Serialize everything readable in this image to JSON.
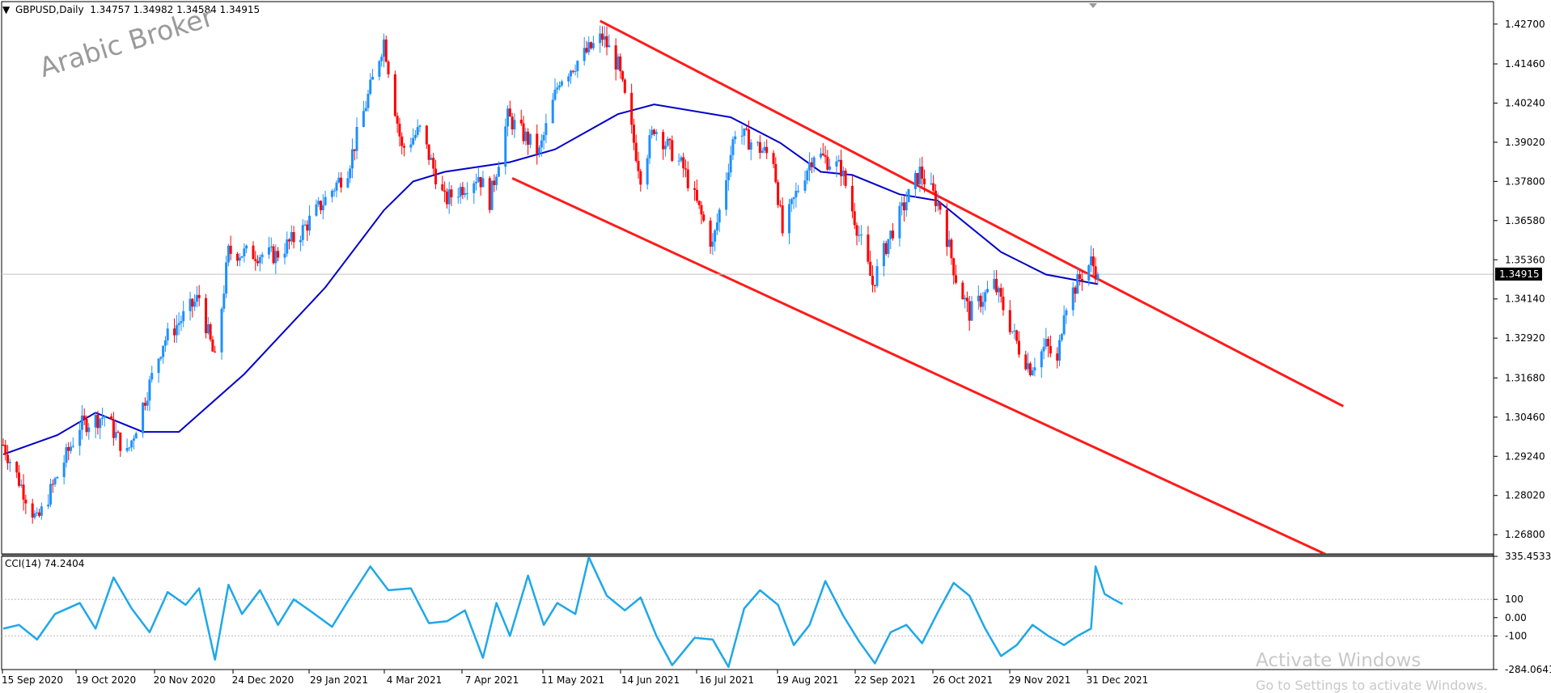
{
  "header": {
    "symbol": "GBPUSD,Daily",
    "ohlc": "1.34757 1.34982 1.34584 1.34915",
    "cci_label": "CCI(14) 74.2404"
  },
  "watermark": "Arabic Broker",
  "activation": {
    "title": "Activate Windows",
    "subtitle": "Go to Settings to activate Windows."
  },
  "colors": {
    "up_candle": "#1e90ff",
    "down_candle": "#ff0000",
    "moving_average": "#0000cc",
    "channel": "#ff1a1a",
    "cci_line": "#1ea8e8",
    "price_label_bg": "#000000"
  },
  "chart_data": [
    {
      "type": "candlestick",
      "symbol": "GBPUSD",
      "timeframe": "Daily",
      "last": {
        "open": 1.34757,
        "high": 1.34982,
        "low": 1.34584,
        "close": 1.34915
      },
      "current_price_label": "1.34915",
      "ylim": [
        1.262,
        1.434
      ],
      "y_ticks": [
        "1.42700",
        "1.41460",
        "1.40240",
        "1.39020",
        "1.37800",
        "1.36580",
        "1.35360",
        "1.34140",
        "1.32920",
        "1.31680",
        "1.30460",
        "1.29240",
        "1.28020",
        "1.26800"
      ],
      "x_ticks": [
        "15 Sep 2020",
        "19 Oct 2020",
        "20 Nov 2020",
        "24 Dec 2020",
        "29 Jan 2021",
        "4 Mar 2021",
        "7 Apr 2021",
        "11 May 2021",
        "14 Jun 2021",
        "16 Jul 2021",
        "19 Aug 2021",
        "22 Sep 2021",
        "26 Oct 2021",
        "29 Nov 2021",
        "31 Dec 2021"
      ],
      "close_path": [
        {
          "date": "2020-09-08",
          "close": 1.296
        },
        {
          "date": "2020-09-23",
          "close": 1.272
        },
        {
          "date": "2020-10-12",
          "close": 1.302
        },
        {
          "date": "2020-10-23",
          "close": 1.305
        },
        {
          "date": "2020-11-02",
          "close": 1.293
        },
        {
          "date": "2020-11-18",
          "close": 1.328
        },
        {
          "date": "2020-12-04",
          "close": 1.342
        },
        {
          "date": "2020-12-11",
          "close": 1.322
        },
        {
          "date": "2020-12-17",
          "close": 1.356
        },
        {
          "date": "2021-01-07",
          "close": 1.355
        },
        {
          "date": "2021-01-18",
          "close": 1.362
        },
        {
          "date": "2021-02-08",
          "close": 1.382
        },
        {
          "date": "2021-02-24",
          "close": 1.422
        },
        {
          "date": "2021-03-04",
          "close": 1.388
        },
        {
          "date": "2021-03-12",
          "close": 1.394
        },
        {
          "date": "2021-03-23",
          "close": 1.372
        },
        {
          "date": "2021-04-07",
          "close": 1.38
        },
        {
          "date": "2021-04-12",
          "close": 1.372
        },
        {
          "date": "2021-04-20",
          "close": 1.398
        },
        {
          "date": "2021-05-04",
          "close": 1.387
        },
        {
          "date": "2021-05-13",
          "close": 1.41
        },
        {
          "date": "2021-06-01",
          "close": 1.423
        },
        {
          "date": "2021-06-08",
          "close": 1.414
        },
        {
          "date": "2021-06-18",
          "close": 1.38
        },
        {
          "date": "2021-06-24",
          "close": 1.395
        },
        {
          "date": "2021-07-07",
          "close": 1.382
        },
        {
          "date": "2021-07-20",
          "close": 1.358
        },
        {
          "date": "2021-07-30",
          "close": 1.394
        },
        {
          "date": "2021-08-16",
          "close": 1.385
        },
        {
          "date": "2021-08-20",
          "close": 1.362
        },
        {
          "date": "2021-08-27",
          "close": 1.376
        },
        {
          "date": "2021-09-03",
          "close": 1.387
        },
        {
          "date": "2021-09-15",
          "close": 1.382
        },
        {
          "date": "2021-09-29",
          "close": 1.346
        },
        {
          "date": "2021-10-06",
          "close": 1.36
        },
        {
          "date": "2021-10-20",
          "close": 1.381
        },
        {
          "date": "2021-10-29",
          "close": 1.37
        },
        {
          "date": "2021-11-05",
          "close": 1.348
        },
        {
          "date": "2021-11-11",
          "close": 1.337
        },
        {
          "date": "2021-11-22",
          "close": 1.346
        },
        {
          "date": "2021-12-03",
          "close": 1.326
        },
        {
          "date": "2021-12-08",
          "close": 1.32
        },
        {
          "date": "2021-12-15",
          "close": 1.327
        },
        {
          "date": "2021-12-20",
          "close": 1.321
        },
        {
          "date": "2021-12-23",
          "close": 1.339
        },
        {
          "date": "2021-12-31",
          "close": 1.349
        },
        {
          "date": "2022-01-04",
          "close": 1.353
        },
        {
          "date": "2022-01-07",
          "close": 1.3491
        }
      ],
      "moving_average": [
        {
          "date": "2020-09-08",
          "value": 1.293
        },
        {
          "date": "2020-10-02",
          "value": 1.299
        },
        {
          "date": "2020-10-19",
          "value": 1.306
        },
        {
          "date": "2020-11-09",
          "value": 1.3
        },
        {
          "date": "2020-11-25",
          "value": 1.3
        },
        {
          "date": "2020-12-24",
          "value": 1.318
        },
        {
          "date": "2021-01-29",
          "value": 1.345
        },
        {
          "date": "2021-02-24",
          "value": 1.369
        },
        {
          "date": "2021-03-09",
          "value": 1.378
        },
        {
          "date": "2021-03-23",
          "value": 1.381
        },
        {
          "date": "2021-04-21",
          "value": 1.384
        },
        {
          "date": "2021-05-11",
          "value": 1.388
        },
        {
          "date": "2021-06-08",
          "value": 1.399
        },
        {
          "date": "2021-06-24",
          "value": 1.402
        },
        {
          "date": "2021-07-28",
          "value": 1.398
        },
        {
          "date": "2021-08-19",
          "value": 1.39
        },
        {
          "date": "2021-09-06",
          "value": 1.381
        },
        {
          "date": "2021-09-20",
          "value": 1.38
        },
        {
          "date": "2021-10-11",
          "value": 1.374
        },
        {
          "date": "2021-10-28",
          "value": 1.372
        },
        {
          "date": "2021-11-25",
          "value": 1.356
        },
        {
          "date": "2021-12-15",
          "value": 1.349
        },
        {
          "date": "2022-01-07",
          "value": 1.346
        }
      ],
      "channel": {
        "upper": [
          {
            "date": "2021-05-31",
            "price": 1.428
          },
          {
            "date": "2022-04-26",
            "price": 1.308
          }
        ],
        "lower": [
          {
            "date": "2021-04-22",
            "price": 1.379
          },
          {
            "date": "2022-04-24",
            "price": 1.26
          }
        ]
      },
      "grid": false,
      "horizontal_price_line": 1.3491
    },
    {
      "type": "line",
      "indicator": "CCI(14)",
      "last_value": 74.2404,
      "ylim": [
        -284.0641,
        335.4533
      ],
      "y_ticks": [
        "335.4533",
        "100",
        "0.00",
        "-100",
        "-284.0641"
      ],
      "reference_levels": [
        100,
        -100
      ],
      "series": [
        {
          "values": [
            {
              "date": "2020-09-08",
              "value": -60
            },
            {
              "date": "2020-09-15",
              "value": -40
            },
            {
              "date": "2020-09-23",
              "value": -120
            },
            {
              "date": "2020-10-01",
              "value": 20
            },
            {
              "date": "2020-10-12",
              "value": 80
            },
            {
              "date": "2020-10-19",
              "value": -60
            },
            {
              "date": "2020-10-27",
              "value": 220
            },
            {
              "date": "2020-11-04",
              "value": 50
            },
            {
              "date": "2020-11-12",
              "value": -80
            },
            {
              "date": "2020-11-20",
              "value": 140
            },
            {
              "date": "2020-11-28",
              "value": 70
            },
            {
              "date": "2020-12-04",
              "value": 160
            },
            {
              "date": "2020-12-11",
              "value": -230
            },
            {
              "date": "2020-12-17",
              "value": 180
            },
            {
              "date": "2020-12-23",
              "value": 20
            },
            {
              "date": "2020-12-31",
              "value": 150
            },
            {
              "date": "2021-01-08",
              "value": -40
            },
            {
              "date": "2021-01-15",
              "value": 100
            },
            {
              "date": "2021-01-22",
              "value": 40
            },
            {
              "date": "2021-02-01",
              "value": -50
            },
            {
              "date": "2021-02-08",
              "value": 90
            },
            {
              "date": "2021-02-18",
              "value": 280
            },
            {
              "date": "2021-02-26",
              "value": 150
            },
            {
              "date": "2021-03-08",
              "value": 160
            },
            {
              "date": "2021-03-16",
              "value": -30
            },
            {
              "date": "2021-03-24",
              "value": -20
            },
            {
              "date": "2021-04-01",
              "value": 40
            },
            {
              "date": "2021-04-09",
              "value": -220
            },
            {
              "date": "2021-04-15",
              "value": 80
            },
            {
              "date": "2021-04-21",
              "value": -100
            },
            {
              "date": "2021-04-29",
              "value": 230
            },
            {
              "date": "2021-05-06",
              "value": -40
            },
            {
              "date": "2021-05-12",
              "value": 80
            },
            {
              "date": "2021-05-20",
              "value": 20
            },
            {
              "date": "2021-05-26",
              "value": 330
            },
            {
              "date": "2021-06-03",
              "value": 120
            },
            {
              "date": "2021-06-11",
              "value": 40
            },
            {
              "date": "2021-06-18",
              "value": 110
            },
            {
              "date": "2021-06-25",
              "value": -100
            },
            {
              "date": "2021-07-02",
              "value": -260
            },
            {
              "date": "2021-07-12",
              "value": -110
            },
            {
              "date": "2021-07-20",
              "value": -120
            },
            {
              "date": "2021-07-27",
              "value": -270
            },
            {
              "date": "2021-08-03",
              "value": 50
            },
            {
              "date": "2021-08-10",
              "value": 150
            },
            {
              "date": "2021-08-18",
              "value": 70
            },
            {
              "date": "2021-08-25",
              "value": -150
            },
            {
              "date": "2021-09-01",
              "value": -40
            },
            {
              "date": "2021-09-08",
              "value": 200
            },
            {
              "date": "2021-09-16",
              "value": 10
            },
            {
              "date": "2021-09-23",
              "value": -130
            },
            {
              "date": "2021-09-30",
              "value": -250
            },
            {
              "date": "2021-10-07",
              "value": -80
            },
            {
              "date": "2021-10-14",
              "value": -40
            },
            {
              "date": "2021-10-21",
              "value": -140
            },
            {
              "date": "2021-10-28",
              "value": 30
            },
            {
              "date": "2021-11-04",
              "value": 190
            },
            {
              "date": "2021-11-11",
              "value": 120
            },
            {
              "date": "2021-11-18",
              "value": -60
            },
            {
              "date": "2021-11-25",
              "value": -210
            },
            {
              "date": "2021-12-02",
              "value": -150
            },
            {
              "date": "2021-12-09",
              "value": -40
            },
            {
              "date": "2021-12-16",
              "value": -100
            },
            {
              "date": "2021-12-23",
              "value": -150
            },
            {
              "date": "2021-12-29",
              "value": -100
            },
            {
              "date": "2022-01-01",
              "value": -80
            },
            {
              "date": "2022-01-04",
              "value": -60
            },
            {
              "date": "2022-01-06",
              "value": 280
            },
            {
              "date": "2022-01-10",
              "value": 130
            },
            {
              "date": "2022-01-14",
              "value": 100
            },
            {
              "date": "2022-01-18",
              "value": 74.2404
            }
          ]
        }
      ]
    }
  ]
}
